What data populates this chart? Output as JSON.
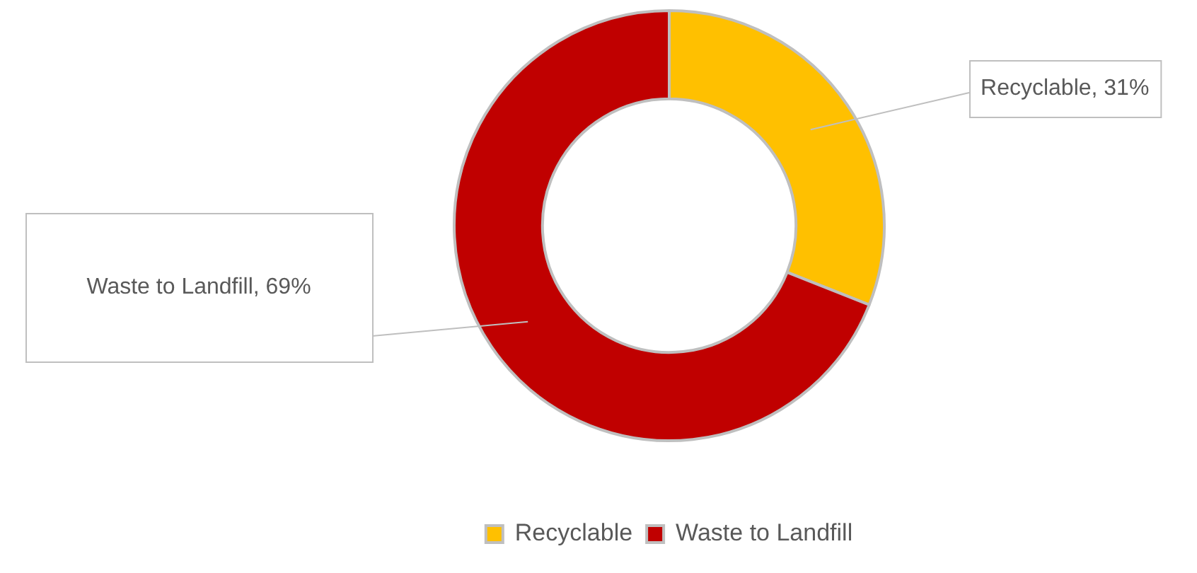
{
  "chart_data": {
    "type": "donut",
    "categories": [
      "Recyclable",
      "Waste to Landfill"
    ],
    "values": [
      31,
      69
    ],
    "colors": [
      "#ffc000",
      "#c00000"
    ],
    "value_labels": [
      "Recyclable, 31%",
      "Waste to Landfill, 69%"
    ],
    "legend": "bottom"
  }
}
